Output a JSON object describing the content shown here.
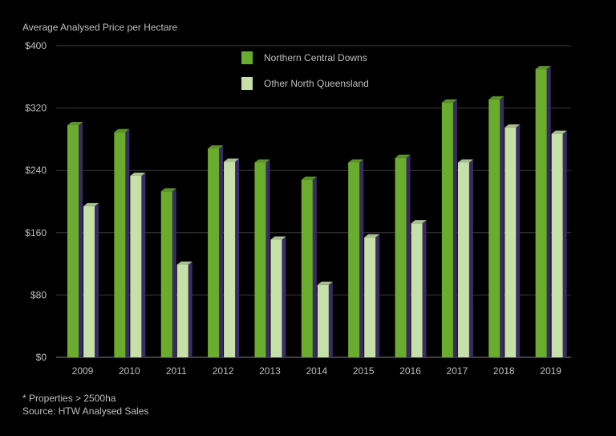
{
  "chart_data": {
    "type": "bar",
    "title": "",
    "ylabel": "Average Analysed Price per Hectare",
    "xlabel": "",
    "categories": [
      "2009",
      "2010",
      "2011",
      "2012",
      "2013",
      "2014",
      "2015",
      "2016",
      "2017",
      "2018",
      "2019"
    ],
    "ylim": [
      0,
      400
    ],
    "yticks": [
      "$0",
      "$80",
      "$160",
      "$240",
      "$320",
      "$400"
    ],
    "ytick_values": [
      0,
      80,
      160,
      240,
      320,
      400
    ],
    "grid": true,
    "legend_position": "top-center",
    "series": [
      {
        "name": "Northern Central Downs",
        "color": "#6aad2e",
        "values": [
          298,
          289,
          213,
          268,
          250,
          228,
          250,
          256,
          327,
          331,
          370
        ]
      },
      {
        "name": "Other North Queensland",
        "color": "#c6e0a9",
        "values": [
          194,
          233,
          119,
          251,
          151,
          93,
          154,
          172,
          250,
          295,
          287
        ]
      }
    ],
    "side_color": "#3b2a63"
  },
  "footnotes": {
    "note": "* Properties > 2500ha",
    "source": "Source: HTW Analysed Sales"
  }
}
